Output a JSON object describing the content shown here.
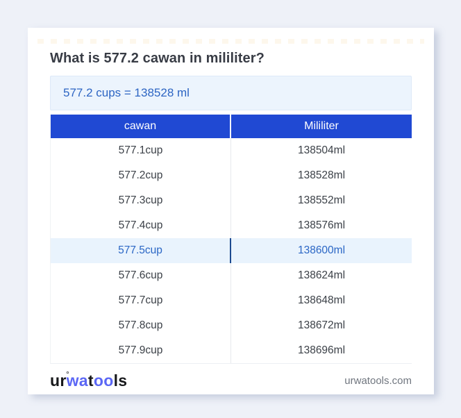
{
  "title": "What is 577.2 cawan in mililiter?",
  "result": "577.2 cups = 138528 ml",
  "table": {
    "headers": [
      "cawan",
      "Mililiter"
    ],
    "rows": [
      {
        "cawan": "577.1cup",
        "ml": "138504ml",
        "highlight": false
      },
      {
        "cawan": "577.2cup",
        "ml": "138528ml",
        "highlight": false
      },
      {
        "cawan": "577.3cup",
        "ml": "138552ml",
        "highlight": false
      },
      {
        "cawan": "577.4cup",
        "ml": "138576ml",
        "highlight": false
      },
      {
        "cawan": "577.5cup",
        "ml": "138600ml",
        "highlight": true
      },
      {
        "cawan": "577.6cup",
        "ml": "138624ml",
        "highlight": false
      },
      {
        "cawan": "577.7cup",
        "ml": "138648ml",
        "highlight": false
      },
      {
        "cawan": "577.8cup",
        "ml": "138672ml",
        "highlight": false
      },
      {
        "cawan": "577.9cup",
        "ml": "138696ml",
        "highlight": false
      }
    ]
  },
  "footer": {
    "logo": {
      "part1": "ur",
      "ring": "°",
      "part2": "wa",
      "part3": "t",
      "part4": "oo",
      "part5": "ls"
    },
    "site": "urwatools.com"
  },
  "colors": {
    "page_background": "#eef1f8",
    "header_blue": "#2049d3",
    "highlight_background": "#e9f3fd",
    "highlight_text": "#2a66c5",
    "result_box_background": "#ecf4fd",
    "result_text": "#2d65c3",
    "logo_blue": "#5b67f5"
  }
}
